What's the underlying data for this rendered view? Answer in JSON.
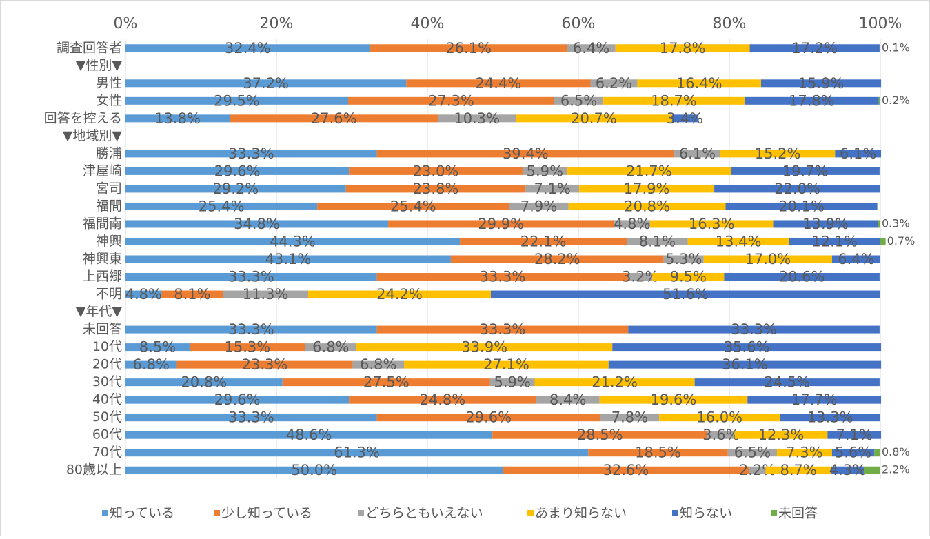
{
  "chart_data": {
    "type": "stacked_barh",
    "categories": [
      "調査回答者",
      "▼性別▼",
      "男性",
      "女性",
      "回答を控える",
      "▼地域別▼",
      "勝浦",
      "津屋崎",
      "宮司",
      "福間",
      "福間南",
      "神興",
      "神興東",
      "上西郷",
      "不明",
      "▼年代▼",
      "未回答",
      "10代",
      "20代",
      "30代",
      "40代",
      "50代",
      "60代",
      "70代",
      "80歳以上"
    ],
    "xlim": [
      0,
      100
    ],
    "xticks": [
      {
        "value": 0,
        "label": "0%"
      },
      {
        "value": 20,
        "label": "20%"
      },
      {
        "value": 40,
        "label": "40%"
      },
      {
        "value": 60,
        "label": "60%"
      },
      {
        "value": 80,
        "label": "80%"
      },
      {
        "value": 100,
        "label": "100%"
      }
    ],
    "grid": true,
    "legend": "bottom",
    "series": [
      {
        "name": "知っている",
        "color": "#5b9bd5",
        "values": [
          32.4,
          null,
          37.2,
          29.5,
          13.8,
          null,
          33.3,
          29.6,
          29.2,
          25.4,
          34.8,
          44.3,
          43.1,
          33.3,
          4.8,
          null,
          33.3,
          8.5,
          6.8,
          20.8,
          29.6,
          33.3,
          48.6,
          61.3,
          50.0
        ],
        "value_labels": [
          "32.4%",
          null,
          "37.2%",
          "29.5%",
          "13.8%",
          null,
          "33.3%",
          "29.6%",
          "29.2%",
          "25.4%",
          "34.8%",
          "44.3%",
          "43.1%",
          "33.3%",
          "4.8%",
          null,
          "33.3%",
          "8.5%",
          "6.8%",
          "20.8%",
          "29.6%",
          "33.3%",
          "48.6%",
          "61.3%",
          "50.0%"
        ]
      },
      {
        "name": "少し知っている",
        "color": "#ed7d31",
        "values": [
          26.1,
          null,
          24.4,
          27.3,
          27.6,
          null,
          39.4,
          23.0,
          23.8,
          25.4,
          29.9,
          22.1,
          28.2,
          33.3,
          8.1,
          null,
          33.3,
          15.3,
          23.3,
          27.5,
          24.8,
          29.6,
          28.5,
          18.5,
          32.6
        ],
        "value_labels": [
          "26.1%",
          null,
          "24.4%",
          "27.3%",
          "27.6%",
          null,
          "39.4%",
          "23.0%",
          "23.8%",
          "25.4%",
          "29.9%",
          "22.1%",
          "28.2%",
          "33.3%",
          "8.1%",
          null,
          "33.3%",
          "15.3%",
          "23.3%",
          "27.5%",
          "24.8%",
          "29.6%",
          "28.5%",
          "18.5%",
          "32.6%"
        ]
      },
      {
        "name": "どちらともいえない",
        "color": "#a5a5a5",
        "values": [
          6.4,
          null,
          6.2,
          6.5,
          10.3,
          null,
          6.1,
          5.9,
          7.1,
          7.9,
          4.8,
          8.1,
          5.3,
          3.2,
          11.3,
          null,
          null,
          6.8,
          6.8,
          5.9,
          8.4,
          7.8,
          3.6,
          6.5,
          2.2
        ],
        "value_labels": [
          "6.4%",
          null,
          "6.2%",
          "6.5%",
          "10.3%",
          null,
          "6.1%",
          "5.9%",
          "7.1%",
          "7.9%",
          "4.8%",
          "8.1%",
          "5.3%",
          "3.2%",
          "11.3%",
          null,
          null,
          "6.8%",
          "6.8%",
          "5.9%",
          "8.4%",
          "7.8%",
          "3.6%",
          "6.5%",
          "2.2%"
        ]
      },
      {
        "name": "あまり知らない",
        "color": "#ffc000",
        "values": [
          17.8,
          null,
          16.4,
          18.7,
          20.7,
          null,
          15.2,
          21.7,
          17.9,
          20.8,
          16.3,
          13.4,
          17.0,
          9.5,
          24.2,
          null,
          null,
          33.9,
          27.1,
          21.2,
          19.6,
          16.0,
          12.3,
          7.3,
          8.7
        ],
        "value_labels": [
          "17.8%",
          null,
          "16.4%",
          "18.7%",
          "20.7%",
          null,
          "15.2%",
          "21.7%",
          "17.9%",
          "20.8%",
          "16.3%",
          "13.4%",
          "17.0%",
          "9.5%",
          "24.2%",
          null,
          null,
          "33.9%",
          "27.1%",
          "21.2%",
          "19.6%",
          "16.0%",
          "12.3%",
          "7.3%",
          "8.7%"
        ]
      },
      {
        "name": "知らない",
        "color": "#4472c4",
        "values": [
          17.2,
          null,
          15.9,
          17.8,
          3.4,
          null,
          6.1,
          19.7,
          22.0,
          20.1,
          13.9,
          12.1,
          6.4,
          20.6,
          51.6,
          null,
          33.3,
          35.6,
          36.1,
          24.5,
          17.7,
          13.3,
          7.1,
          5.6,
          4.3
        ],
        "value_labels": [
          "17.2%",
          null,
          "15.9%",
          "17.8%",
          "3.4%",
          null,
          "6.1%",
          "19.7%",
          "22.0%",
          "20.1%",
          "13.9%",
          "12.1%",
          "6.4%",
          "20.6%",
          "51.6%",
          null,
          "33.3%",
          "35.6%",
          "36.1%",
          "24.5%",
          "17.7%",
          "13.3%",
          "7.1%",
          "5.6%",
          "4.3%"
        ]
      },
      {
        "name": "未回答",
        "color": "#70ad47",
        "values": [
          0.1,
          null,
          null,
          0.2,
          null,
          null,
          null,
          null,
          null,
          null,
          0.3,
          0.7,
          null,
          null,
          null,
          null,
          null,
          null,
          null,
          null,
          null,
          null,
          null,
          0.8,
          2.2
        ],
        "value_labels": [
          "0.1%",
          null,
          null,
          "0.2%",
          null,
          null,
          null,
          null,
          null,
          null,
          "0.3%",
          "0.7%",
          null,
          null,
          null,
          null,
          null,
          null,
          null,
          null,
          null,
          null,
          null,
          "0.8%",
          "2.2%"
        ],
        "label_position": "outside"
      }
    ]
  }
}
